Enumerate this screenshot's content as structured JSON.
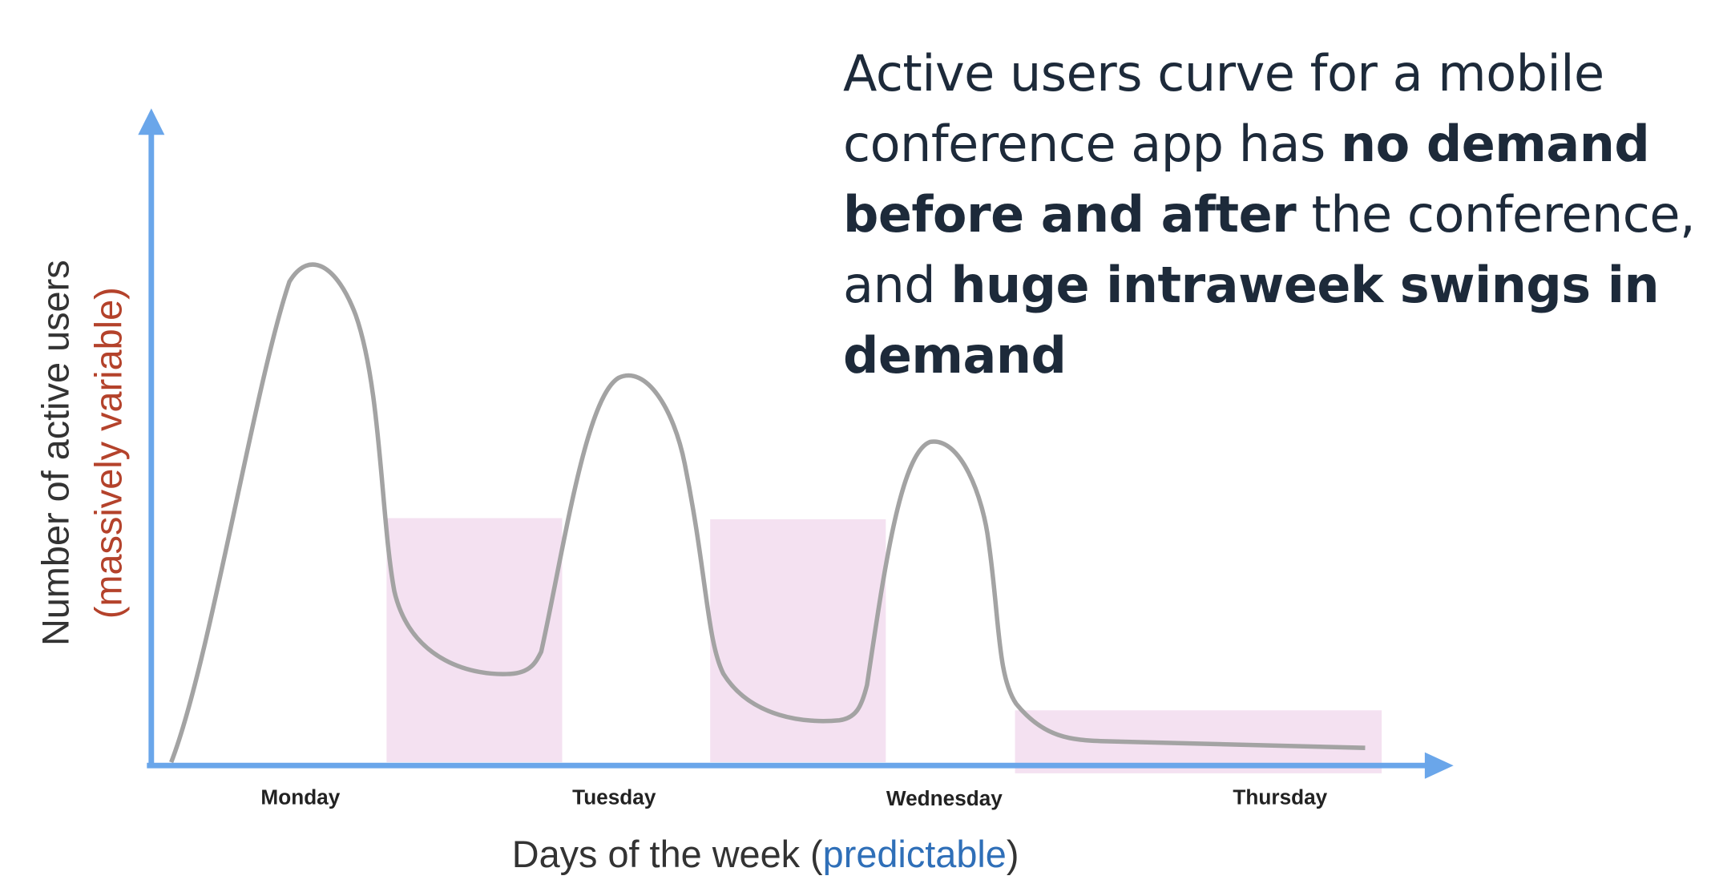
{
  "heading": {
    "parts": [
      {
        "text": "Active users curve for a mobile conference app has ",
        "bold": false
      },
      {
        "text": "no demand before and after",
        "bold": true
      },
      {
        "text": " the conference, and ",
        "bold": false
      },
      {
        "text": "huge intraweek swings in demand",
        "bold": true
      }
    ]
  },
  "y_axis": {
    "label": "Number of active users",
    "note": "(massively variable)"
  },
  "x_axis": {
    "label": "Days of the week (",
    "note": "predictable",
    "close": ")"
  },
  "days": [
    "Monday",
    "Tuesday",
    "Wednesday",
    "Thursday"
  ]
}
